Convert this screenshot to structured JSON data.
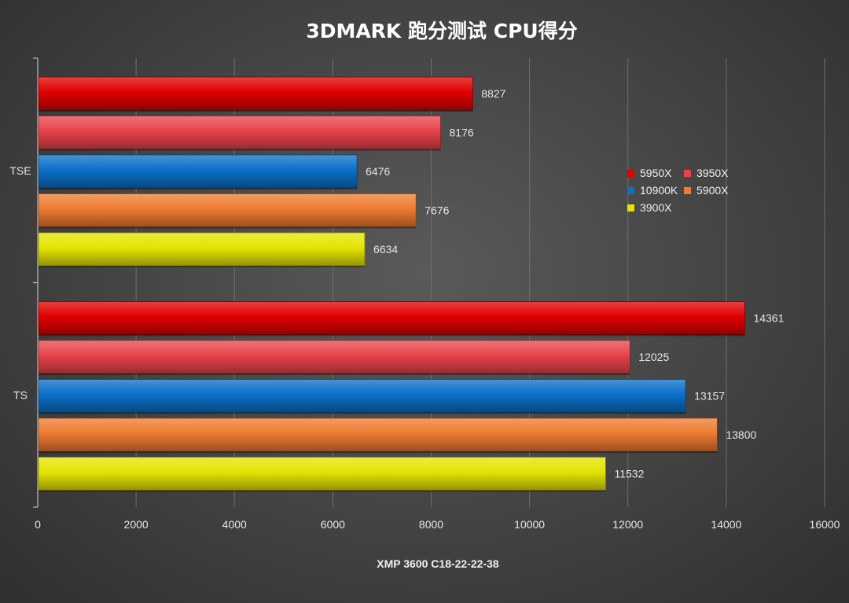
{
  "chart_data": {
    "type": "bar",
    "orientation": "horizontal",
    "title": "3DMARK 跑分测试 CPU得分",
    "xlabel": "XMP 3600 C18-22-22-38",
    "ylabel": "",
    "xlim": [
      0,
      16000
    ],
    "xticks": [
      "0",
      "2000",
      "4000",
      "6000",
      "8000",
      "10000",
      "12000",
      "14000",
      "16000"
    ],
    "grid": "vertical",
    "legend_position": "right",
    "categories": [
      "TSE",
      "TS"
    ],
    "series": [
      {
        "name": "5950X",
        "color": "#e00000",
        "values": [
          8827,
          14361
        ]
      },
      {
        "name": "3950X",
        "color": "#e8444a",
        "values": [
          8176,
          12025
        ]
      },
      {
        "name": "10900K",
        "color": "#0b70c8",
        "values": [
          6476,
          13157
        ]
      },
      {
        "name": "5900X",
        "color": "#ee7b30",
        "values": [
          7676,
          13800
        ]
      },
      {
        "name": "3900X",
        "color": "#e4e400",
        "values": [
          6634,
          11532
        ]
      }
    ]
  }
}
